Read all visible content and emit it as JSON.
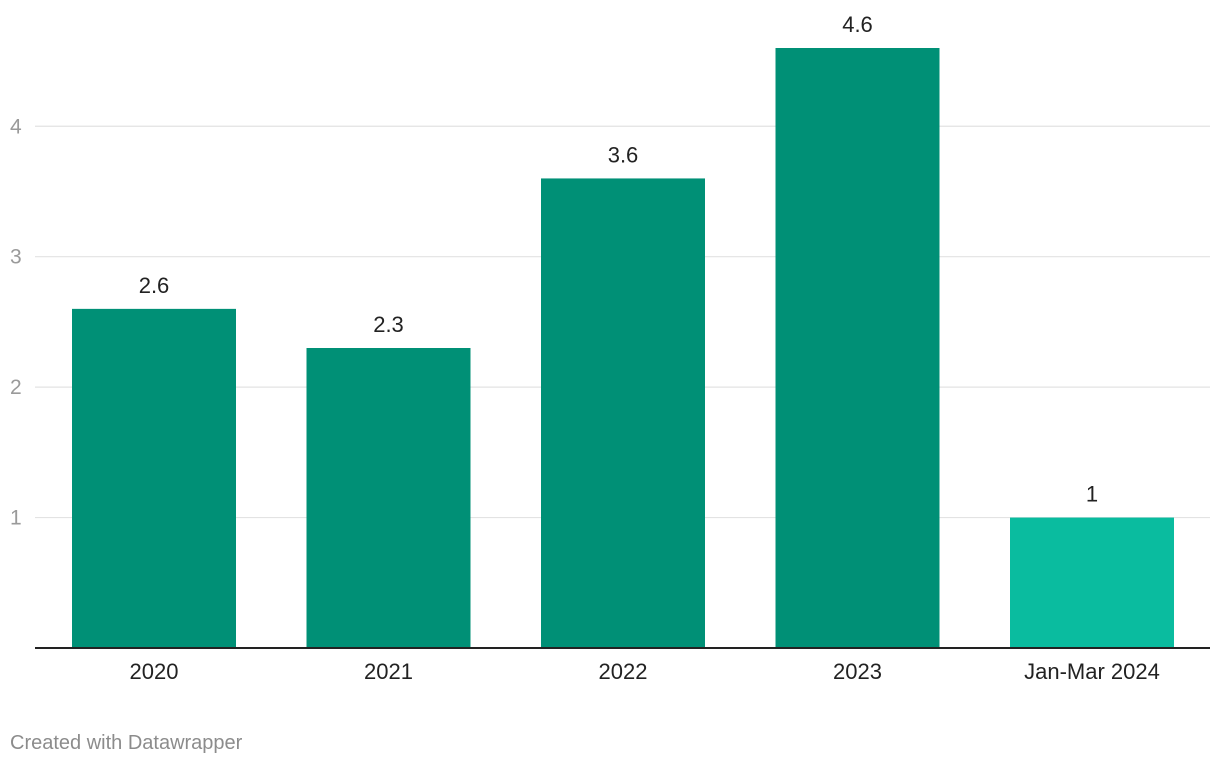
{
  "chart_data": {
    "type": "bar",
    "categories": [
      "2020",
      "2021",
      "2022",
      "2023",
      "Jan-Mar 2024"
    ],
    "values": [
      2.6,
      2.3,
      3.6,
      4.6,
      1
    ],
    "value_labels": [
      "2.6",
      "2.3",
      "3.6",
      "4.6",
      "1"
    ],
    "title": "",
    "xlabel": "",
    "ylabel": "",
    "ylim": [
      0,
      4.6
    ],
    "yticks": [
      1,
      2,
      3,
      4
    ],
    "grid": true,
    "colors": {
      "bar": "#009076",
      "highlight_bar": "#0abc9f",
      "highlight_index": 4,
      "gridline": "#e3e3e3",
      "axis": "#222222",
      "y_tick_text": "#9a9a9a",
      "text": "#222222"
    }
  },
  "footer": {
    "credit": "Created with Datawrapper"
  }
}
